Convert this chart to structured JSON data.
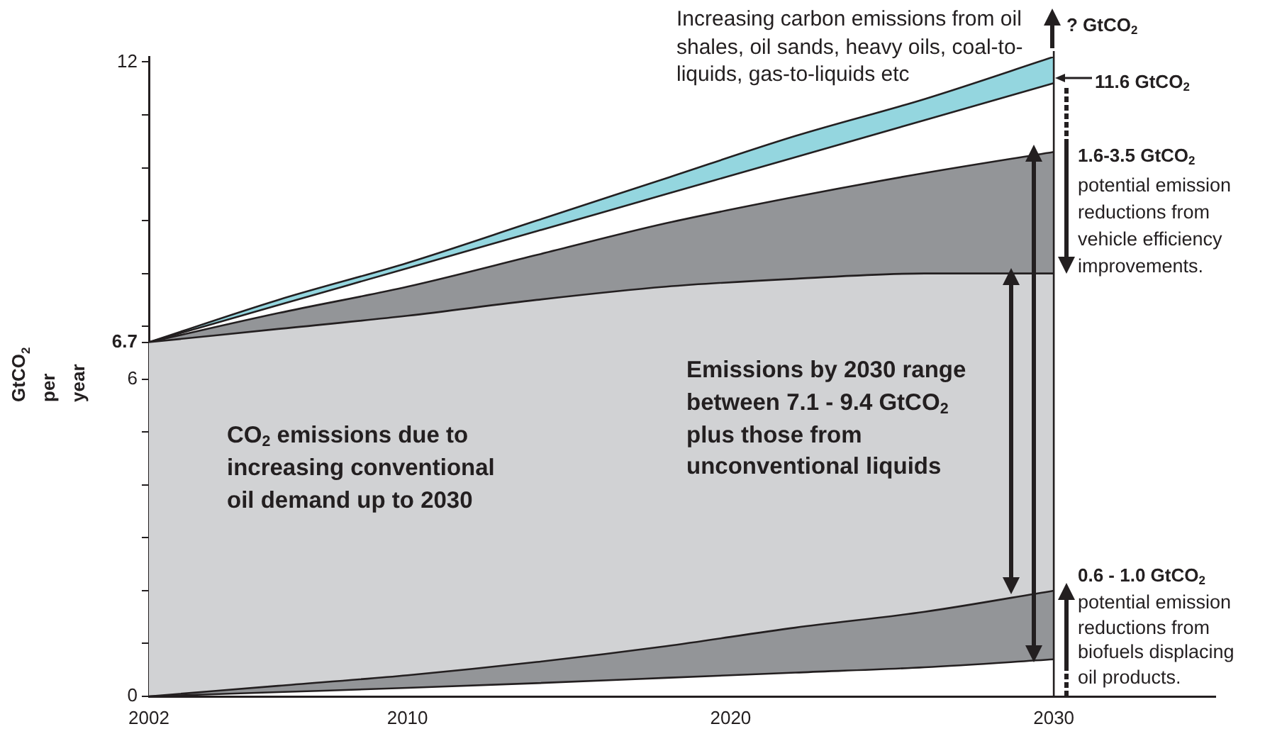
{
  "chart_data": {
    "type": "area",
    "ylabel": "GtCO$_{2}$ per year",
    "x": [
      2002,
      2006,
      2010,
      2014,
      2018,
      2022,
      2026,
      2030
    ],
    "series": [
      {
        "type": "line",
        "color": "#231f20",
        "values": [
          0,
          0.08,
          0.16,
          0.25,
          0.35,
          0.45,
          0.55,
          0.7
        ]
      },
      {
        "type": "area",
        "color": "#939598",
        "values": [
          0,
          0.2,
          0.4,
          0.65,
          0.95,
          1.3,
          1.6,
          2.0
        ]
      },
      {
        "type": "area",
        "color": "#d1d2d4",
        "values": [
          6.7,
          6.95,
          7.2,
          7.5,
          7.75,
          7.9,
          8.0,
          8.0
        ]
      },
      {
        "type": "area",
        "color": "#939598",
        "values": [
          6.7,
          7.25,
          7.75,
          8.35,
          8.95,
          9.45,
          9.9,
          10.3
        ]
      },
      {
        "type": "area",
        "color": "#ffffff",
        "values": [
          6.7,
          7.4,
          8.1,
          8.8,
          9.5,
          10.2,
          10.9,
          11.6
        ]
      },
      {
        "type": "area",
        "color": "#94d6df",
        "values": [
          6.7,
          7.5,
          8.2,
          9.0,
          9.8,
          10.6,
          11.3,
          12.1
        ]
      }
    ],
    "xlim": [
      2002,
      2035
    ],
    "xticks": [
      2002,
      2010,
      2020,
      2030
    ],
    "ylim": [
      0,
      12.1
    ],
    "yticks": [
      0,
      {
        "value": 1,
        "label": null
      },
      {
        "value": 2,
        "label": null
      },
      {
        "value": 3,
        "label": null
      },
      {
        "value": 4,
        "label": null
      },
      {
        "value": 5,
        "label": null
      },
      6,
      6.7,
      {
        "value": 7,
        "label": null
      },
      {
        "value": 8,
        "label": null
      },
      {
        "value": 9,
        "label": null
      },
      {
        "value": 10,
        "label": null
      },
      {
        "value": 11,
        "label": null
      },
      12
    ],
    "ref_lines": [
      {
        "axis": "x",
        "value": 2030,
        "color": "#231f20"
      }
    ],
    "annotations": [
      "Increasing carbon emissions from oil shales, oil sands, heavy oils, coal-to-liquids, gas-to-liquids etc",
      "? GtCO$_{2}$",
      {
        "text": "11.6 GtCO$_{2}$",
        "x": 2030,
        "y": 11.6
      },
      "1.6-3.5 GtCO$_{2}$",
      "potential emission reductions from vehicle efficiency improvements.",
      "Emissions by 2030 range between 7.1 - 9.4 GtCO$_{2}$ plus those from unconventional liquids",
      "CO$_{2}$ emissions due to increasing conventional oil demand up to 2030",
      "0.6 - 1.0 GtCO$_{2}$",
      "potential emission reductions from biofuels displacing oil products."
    ]
  }
}
